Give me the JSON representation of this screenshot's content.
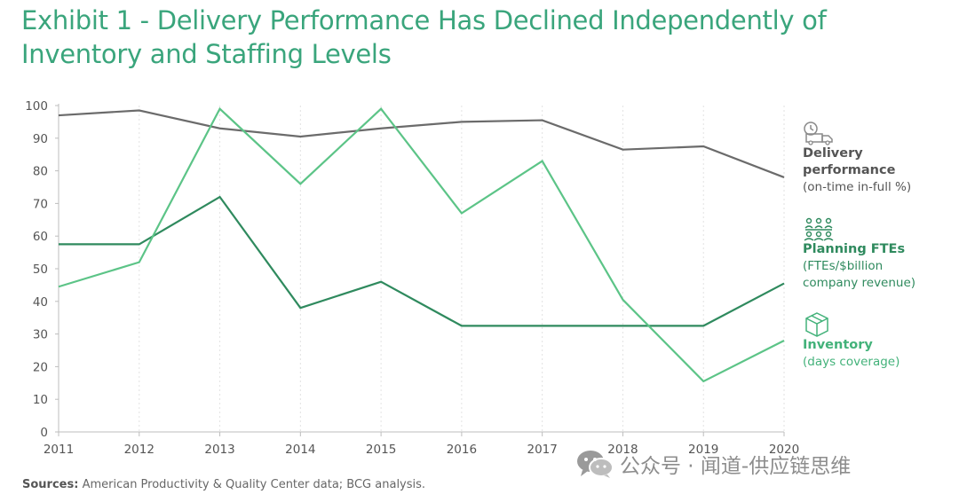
{
  "title": "Exhibit 1 - Delivery Performance Has Declined Independently of Inventory and Staffing Levels",
  "source": {
    "label": "Sources:",
    "text": "American Productivity & Quality Center data; BCG analysis."
  },
  "watermark": {
    "text": "公众号 · 闻道-供应链思维",
    "icon": "wechat-icon"
  },
  "legend": {
    "delivery": {
      "icon": "truck-clock-icon",
      "name": "Delivery performance",
      "sub": "(on-time in-full %)"
    },
    "fte": {
      "icon": "people-network-icon",
      "name": "Planning FTEs",
      "sub": "(FTEs/$billion company revenue)"
    },
    "inventory": {
      "icon": "box-icon",
      "name": "Inventory",
      "sub": "(days coverage)"
    }
  },
  "colors": {
    "delivery": "#6b6b6b",
    "fte": "#2f8a5e",
    "inventory": "#5cc487",
    "title": "#3aa57c",
    "axis": "#bdbdbd",
    "tick_text": "#555555"
  },
  "chart_data": {
    "type": "line",
    "x": [
      "2011",
      "2012",
      "2013",
      "2014",
      "2015",
      "2016",
      "2017",
      "2018",
      "2019",
      "2020"
    ],
    "ylim": [
      0,
      100
    ],
    "yticks": [
      0,
      10,
      20,
      30,
      40,
      50,
      60,
      70,
      80,
      90,
      100
    ],
    "grid": "vertical",
    "legend_position": "right",
    "series": [
      {
        "key": "delivery",
        "name": "Delivery performance",
        "values": [
          97,
          98.5,
          93,
          90.5,
          93,
          95,
          95.5,
          86.5,
          87.5,
          78
        ]
      },
      {
        "key": "fte",
        "name": "Planning FTEs",
        "values": [
          57.5,
          57.5,
          72,
          38,
          46,
          32.5,
          32.5,
          32.5,
          32.5,
          45.5
        ]
      },
      {
        "key": "inventory",
        "name": "Inventory",
        "values": [
          44.5,
          52,
          99,
          76,
          99,
          67,
          83,
          40.5,
          15.5,
          28
        ]
      }
    ]
  }
}
